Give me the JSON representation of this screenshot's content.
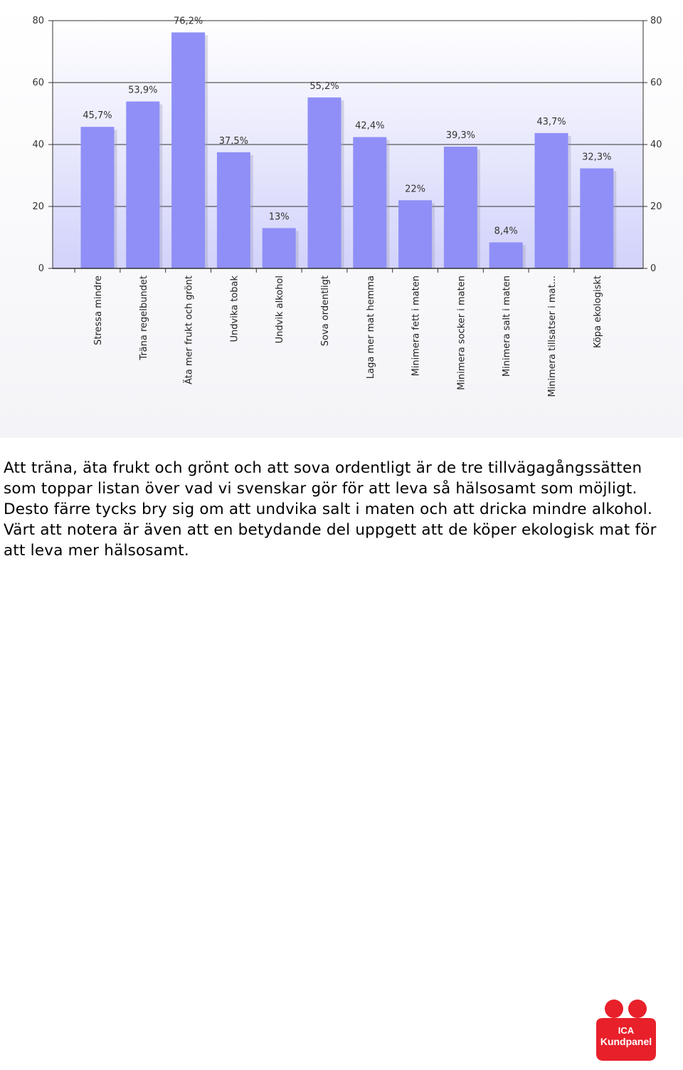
{
  "chart_data": {
    "type": "bar",
    "categories": [
      "Stressa mindre",
      "Träna regelbundet",
      "Äta mer frukt och grönt",
      "Undvika tobak",
      "Undvik alkohol",
      "Sova ordentligt",
      "Laga mer mat hemma",
      "Minimera fett i maten",
      "Minimera socker i maten",
      "Minimera salt i maten",
      "Minimera tillsatser i mat...",
      "Köpa ekologiskt"
    ],
    "values": [
      45.7,
      53.9,
      76.2,
      37.5,
      13,
      55.2,
      42.4,
      22,
      39.3,
      8.4,
      43.7,
      32.3
    ],
    "value_labels": [
      "45,7%",
      "53,9%",
      "76,2%",
      "37,5%",
      "13%",
      "55,2%",
      "42,4%",
      "22%",
      "39,3%",
      "8,4%",
      "43,7%",
      "32,3%"
    ],
    "yticks": [
      "0",
      "20",
      "40",
      "60",
      "80"
    ],
    "ylim": [
      0,
      80
    ],
    "grid": true,
    "bar_color": "#8f8ff7",
    "bg_top_color": "#ffffff",
    "bg_bottom_color": "#d2d2fb"
  },
  "caption": "Att träna, äta frukt och grönt och att sova ordentligt är de tre tillvägagångssätten som toppar listan över vad vi svenskar gör för att leva så hälsosamt som möjligt. Desto färre tycks bry sig om att undvika salt i maten och att dricka mindre alkohol. Värt att notera är även att en betydande del uppgett att de köper ekologisk mat för att leva mer hälsosamt.",
  "logo": {
    "line1": "ICA",
    "line2": "Kundpanel",
    "color": "#e8202a"
  }
}
